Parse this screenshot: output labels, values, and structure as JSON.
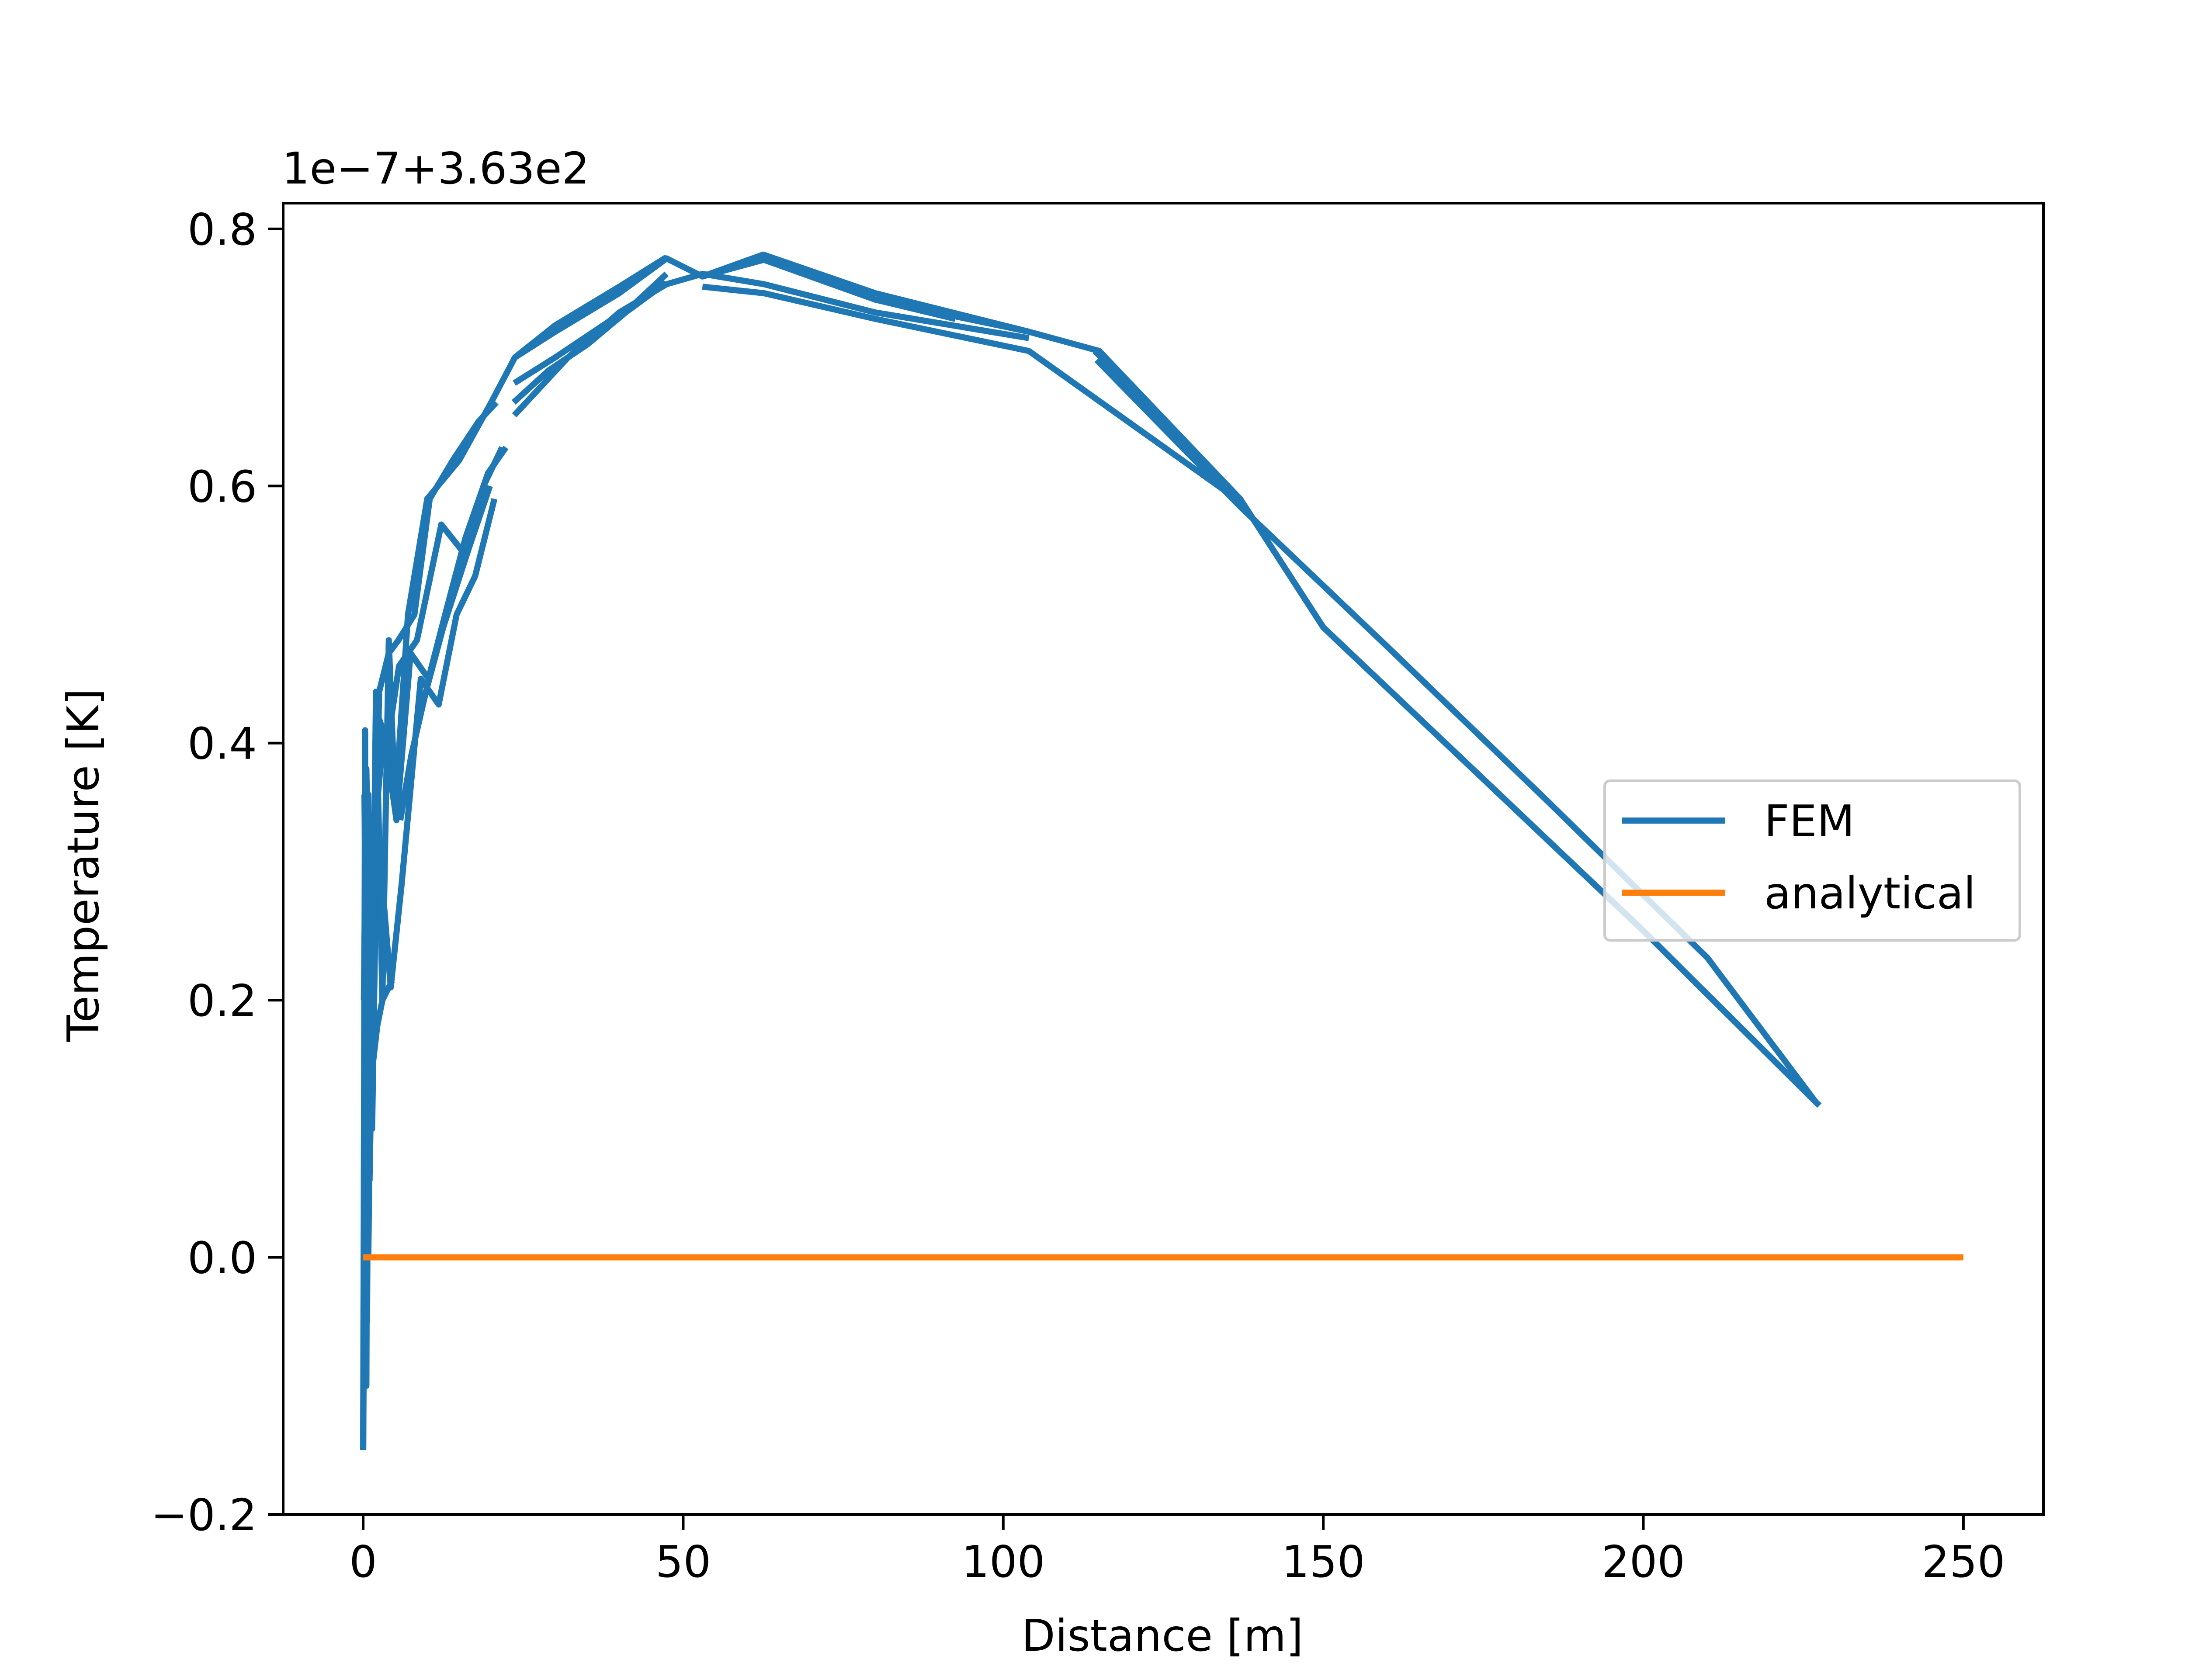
{
  "chart_data": {
    "type": "line",
    "title": "",
    "offset_label": "1e−7+3.63e2",
    "xlabel": "Distance [m]",
    "ylabel": "Temperature [K]",
    "xlim": [
      -12.5,
      262.5
    ],
    "ylim": [
      -0.2,
      0.82
    ],
    "x_ticks": [
      0,
      50,
      100,
      150,
      200,
      250
    ],
    "x_tick_labels": [
      "0",
      "50",
      "100",
      "150",
      "200",
      "250"
    ],
    "y_ticks": [
      -0.2,
      0.0,
      0.2,
      0.4,
      0.6,
      0.8
    ],
    "y_tick_labels": [
      "−0.2",
      "0.0",
      "0.2",
      "0.4",
      "0.6",
      "0.8"
    ],
    "grid": false,
    "legend_position": "center-right",
    "series": [
      {
        "name": "FEM",
        "color": "#1f77b4",
        "x": [
          0,
          0.3,
          0.5,
          0.8,
          1.2,
          2,
          3,
          4,
          5,
          7,
          10,
          15,
          20,
          23.7,
          30,
          40,
          47.4,
          53,
          62.6,
          80,
          104,
          115,
          137,
          150,
          175,
          200,
          227.5
        ],
        "y": [
          -0.15,
          0.41,
          -0.1,
          0.36,
          0.1,
          0.44,
          0.2,
          0.48,
          0.35,
          0.5,
          0.59,
          0.62,
          0.665,
          0.7,
          0.72,
          0.75,
          0.777,
          0.763,
          0.776,
          0.745,
          0.72,
          0.705,
          0.59,
          0.49,
          0.372,
          0.254,
          0.118
        ]
      },
      {
        "name": "analytical",
        "color": "#ff7f0e",
        "x": [
          0,
          250
        ],
        "y": [
          0.0,
          0.0
        ]
      }
    ],
    "fem_bundle": [
      {
        "x": [
          0,
          0.3,
          0.6,
          1.0,
          1.5,
          2.5,
          4,
          5.5,
          8,
          10.4
        ],
        "y": [
          -0.15,
          0.1,
          -0.05,
          0.3,
          0.22,
          0.44,
          0.47,
          0.48,
          0.5,
          0.59
        ]
      },
      {
        "x": [
          10.4,
          14,
          18,
          20.8
        ],
        "y": [
          0.59,
          0.62,
          0.65,
          0.665
        ]
      },
      {
        "x": [
          0.2,
          0.8,
          1.6,
          3.2,
          5.2,
          7.4,
          10.2,
          12.8,
          16,
          19.5,
          22.3
        ],
        "y": [
          0.36,
          0.0,
          0.32,
          0.41,
          0.34,
          0.47,
          0.45,
          0.5,
          0.56,
          0.61,
          0.63
        ]
      },
      {
        "x": [
          0.1,
          0.5,
          1.4,
          2.4,
          3.8,
          5.6,
          8.4,
          12.2,
          15.4,
          18.8,
          21.7
        ],
        "y": [
          0.2,
          0.38,
          0.1,
          0.42,
          0.4,
          0.46,
          0.48,
          0.57,
          0.55,
          0.6,
          0.63
        ]
      },
      {
        "x": [
          0.4,
          1.0,
          2.0,
          4.3,
          6.0,
          9.0,
          11.8,
          14.6,
          17.5,
          20.5
        ],
        "y": [
          0.3,
          0.06,
          0.35,
          0.21,
          0.29,
          0.45,
          0.43,
          0.5,
          0.53,
          0.59
        ]
      },
      {
        "x": [
          5.8,
          7.5,
          9.8,
          12.5,
          16.4,
          19.8
        ],
        "y": [
          0.34,
          0.39,
          0.44,
          0.49,
          0.55,
          0.6
        ]
      },
      {
        "x": [
          23.7,
          30,
          40,
          47.4
        ],
        "y": [
          0.7,
          0.725,
          0.755,
          0.778
        ]
      },
      {
        "x": [
          23.6,
          30,
          36,
          42,
          47.4
        ],
        "y": [
          0.68,
          0.7,
          0.72,
          0.74,
          0.765
        ]
      },
      {
        "x": [
          23.5,
          29,
          35,
          41,
          47.3
        ],
        "y": [
          0.665,
          0.69,
          0.71,
          0.735,
          0.758
        ]
      },
      {
        "x": [
          23.6,
          32,
          40,
          47.4,
          53,
          62.6,
          80,
          104
        ],
        "y": [
          0.655,
          0.7,
          0.735,
          0.757,
          0.765,
          0.757,
          0.735,
          0.715
        ]
      },
      {
        "x": [
          53,
          62.5,
          80,
          104
        ],
        "y": [
          0.763,
          0.78,
          0.75,
          0.72
        ]
      },
      {
        "x": [
          62.6,
          80,
          92.5
        ],
        "y": [
          0.776,
          0.745,
          0.73
        ]
      },
      {
        "x": [
          53,
          62.6,
          80,
          104,
          137
        ],
        "y": [
          0.755,
          0.75,
          0.73,
          0.705,
          0.588
        ]
      },
      {
        "x": [
          114.3,
          137,
          150,
          175,
          200,
          227.5
        ],
        "y": [
          0.705,
          0.59,
          0.49,
          0.372,
          0.254,
          0.118
        ]
      },
      {
        "x": [
          114.6,
          137,
          160,
          185,
          210,
          226.9
        ],
        "y": [
          0.698,
          0.584,
          0.475,
          0.355,
          0.233,
          0.121
        ]
      },
      {
        "x": [
          0.0,
          0.2,
          0.5,
          0.9,
          1.5,
          2.2,
          3.0,
          4.0,
          4.5
        ],
        "y": [
          -0.14,
          0.25,
          0.05,
          0.1,
          0.15,
          0.18,
          0.2,
          0.21,
          0.215
        ]
      }
    ]
  }
}
